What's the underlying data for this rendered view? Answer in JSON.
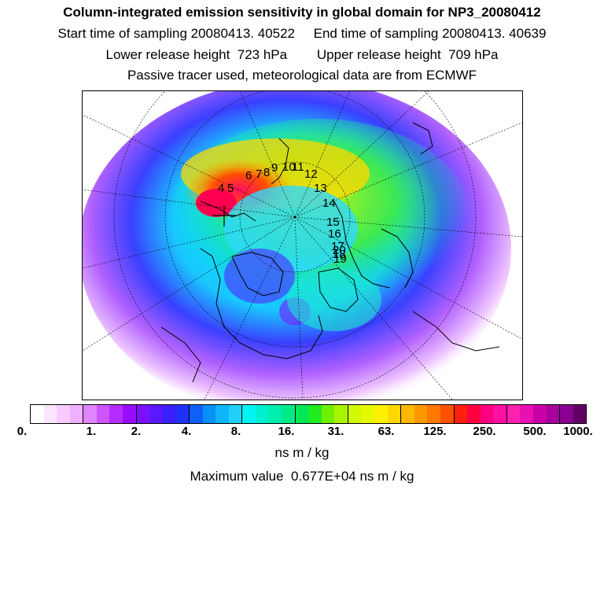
{
  "header": {
    "title": "Column-integrated emission sensitivity in global domain for NP3_20080412",
    "line_sampling": "Start time of sampling 20080413. 40522     End time of sampling 20080413. 40639",
    "line_release": "Lower release height  723 hPa        Upper release height  709 hPa",
    "line_tracer": "Passive tracer used, meteorological data are from ECMWF"
  },
  "map": {
    "projection": "north-polar-stereographic",
    "trajectory_labels": [
      "4",
      "5",
      "6",
      "7",
      "8",
      "9",
      "10",
      "11",
      "12",
      "13",
      "14",
      "15",
      "16",
      "17",
      "18",
      "19",
      "20"
    ]
  },
  "legend": {
    "ticks": [
      "0.",
      "1.",
      "2.",
      "4.",
      "8.",
      "16.",
      "31.",
      "63.",
      "125.",
      "250.",
      "500.",
      "1000."
    ],
    "colors": [
      "#ffffff",
      "#fbe6ff",
      "#f6ccff",
      "#efb0ff",
      "#df85ff",
      "#cc55ff",
      "#b52cff",
      "#9a0cff",
      "#7a10ff",
      "#5a18ff",
      "#3a20ff",
      "#2030f8",
      "#1060f8",
      "#0890f8",
      "#10b4f8",
      "#20d0f8",
      "#00f5f0",
      "#00f0d0",
      "#00eeb0",
      "#00ea88",
      "#00e858",
      "#20ec20",
      "#70f000",
      "#a8f400",
      "#d0f800",
      "#e8f800",
      "#fff000",
      "#ffd800",
      "#ffb800",
      "#ff9800",
      "#ff7800",
      "#ff5000",
      "#ff2010",
      "#ff0040",
      "#ff0080",
      "#ff10a0",
      "#ff20b0",
      "#e810b0",
      "#c800a8",
      "#a8009c",
      "#880090",
      "#600064"
    ],
    "unit": "ns m / kg",
    "max_text": "Maximum value  0.677E+04 ns m / kg"
  }
}
